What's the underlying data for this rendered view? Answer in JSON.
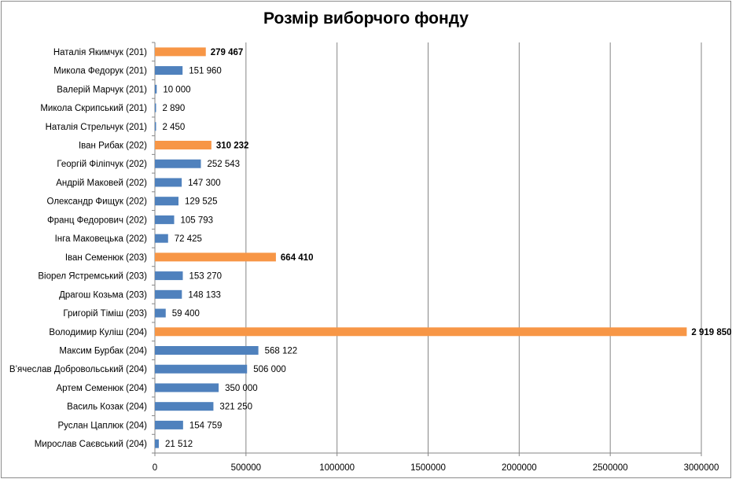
{
  "chart_data": {
    "type": "bar",
    "orientation": "horizontal",
    "title": "Розмір виборчого фонду",
    "xlabel": "",
    "ylabel": "",
    "xlim": [
      0,
      3000000
    ],
    "xticks": [
      "0",
      "500000",
      "1000000",
      "1500000",
      "2000000",
      "2500000",
      "3000000"
    ],
    "xtick_values": [
      0,
      500000,
      1000000,
      1500000,
      2000000,
      2500000,
      3000000
    ],
    "grid": "vertical",
    "colors": {
      "highlight": "#f79646",
      "normal": "#4f81bd",
      "grid": "#868686"
    },
    "categories": [
      "Наталія Якимчук (201)",
      "Микола Федорук (201)",
      "Валерій Марчук (201)",
      "Микола Скрипський (201)",
      "Наталія Стрельчук (201)",
      "Іван Рибак (202)",
      "Георгій Філіпчук (202)",
      "Андрій Маковей (202)",
      "Олександр Фищук (202)",
      "Франц  Федорович (202)",
      "Інга Маковецька (202)",
      "Іван  Семенюк (203)",
      "Віорел Ястремський (203)",
      "Драгош Козьма (203)",
      "Григорій Тіміш (203)",
      "Володимир Куліш (204)",
      "Максим Бурбак (204)",
      "В’ячеслав Добровольський (204)",
      "Артем Семенюк (204)",
      "Василь Козак (204)",
      "Руслан Цаплюк (204)",
      "Мирослав Саєвський (204)"
    ],
    "values": [
      279467,
      151960,
      10000,
      2890,
      2450,
      310232,
      252543,
      147300,
      129525,
      105793,
      72425,
      664410,
      153270,
      148133,
      59400,
      2919850,
      568122,
      506000,
      350000,
      321250,
      154759,
      21512
    ],
    "data_labels": [
      "279 467",
      "151 960",
      "10 000",
      "2 890",
      "2 450",
      "310 232",
      "252 543",
      "147 300",
      "129 525",
      "105 793",
      "72 425",
      "664 410",
      "153 270",
      "148 133",
      "59 400",
      "2 919 850",
      "568 122",
      "506 000",
      "350 000",
      "321 250",
      "154 759",
      "21 512"
    ],
    "highlighted": [
      true,
      false,
      false,
      false,
      false,
      true,
      false,
      false,
      false,
      false,
      false,
      true,
      false,
      false,
      false,
      true,
      false,
      false,
      false,
      false,
      false,
      false
    ]
  }
}
